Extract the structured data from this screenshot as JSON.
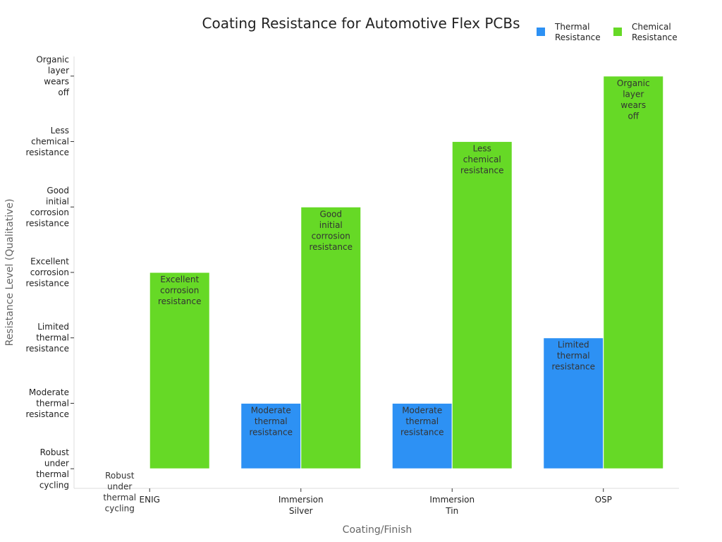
{
  "chart_data": {
    "type": "bar",
    "title": "Coating Resistance for Automotive Flex PCBs",
    "xlabel": "Coating/Finish",
    "ylabel": "Resistance Level (Qualitative)",
    "categories": [
      "ENIG",
      "Immersion Silver",
      "Immersion Tin",
      "OSP"
    ],
    "category_lines": [
      [
        "ENIG"
      ],
      [
        "Immersion",
        "Silver"
      ],
      [
        "Immersion",
        "Tin"
      ],
      [
        "OSP"
      ]
    ],
    "y_levels": [
      "Robust under thermal cycling",
      "Moderate thermal resistance",
      "Limited thermal resistance",
      "Excellent corrosion resistance",
      "Good initial corrosion resistance",
      "Less chemical resistance",
      "Organic layer wears off"
    ],
    "y_level_lines": [
      [
        "Robust",
        "under",
        "thermal",
        "cycling"
      ],
      [
        "Moderate",
        "thermal",
        "resistance"
      ],
      [
        "Limited",
        "thermal",
        "resistance"
      ],
      [
        "Excellent",
        "corrosion",
        "resistance"
      ],
      [
        "Good",
        "initial",
        "corrosion",
        "resistance"
      ],
      [
        "Less",
        "chemical",
        "resistance"
      ],
      [
        "Organic",
        "layer",
        "wears",
        "off"
      ]
    ],
    "ylim": [
      -0.3,
      6.3
    ],
    "grid": false,
    "legend_position": "top-right",
    "series": [
      {
        "name": "Thermal Resistance",
        "legend_lines": [
          "Thermal",
          "Resistance"
        ],
        "color": "#2d91f4",
        "values": [
          0,
          1,
          1,
          2
        ],
        "labels": [
          [
            [
              "Robust",
              "under",
              "thermal",
              "cycling"
            ]
          ],
          [
            [
              "Moderate",
              "thermal",
              "resistance"
            ]
          ],
          [
            [
              "Moderate",
              "thermal",
              "resistance"
            ]
          ],
          [
            [
              "Limited",
              "thermal",
              "resistance"
            ]
          ]
        ]
      },
      {
        "name": "Chemical Resistance",
        "legend_lines": [
          "Chemical",
          "Resistance"
        ],
        "color": "#66d926",
        "values": [
          3,
          4,
          5,
          6
        ],
        "labels": [
          [
            [
              "Excellent",
              "corrosion",
              "resistance"
            ]
          ],
          [
            [
              "Good",
              "initial",
              "corrosion",
              "resistance"
            ]
          ],
          [
            [
              "Less",
              "chemical",
              "resistance"
            ]
          ],
          [
            [
              "Organic",
              "layer",
              "wears",
              "off"
            ]
          ]
        ]
      }
    ]
  }
}
